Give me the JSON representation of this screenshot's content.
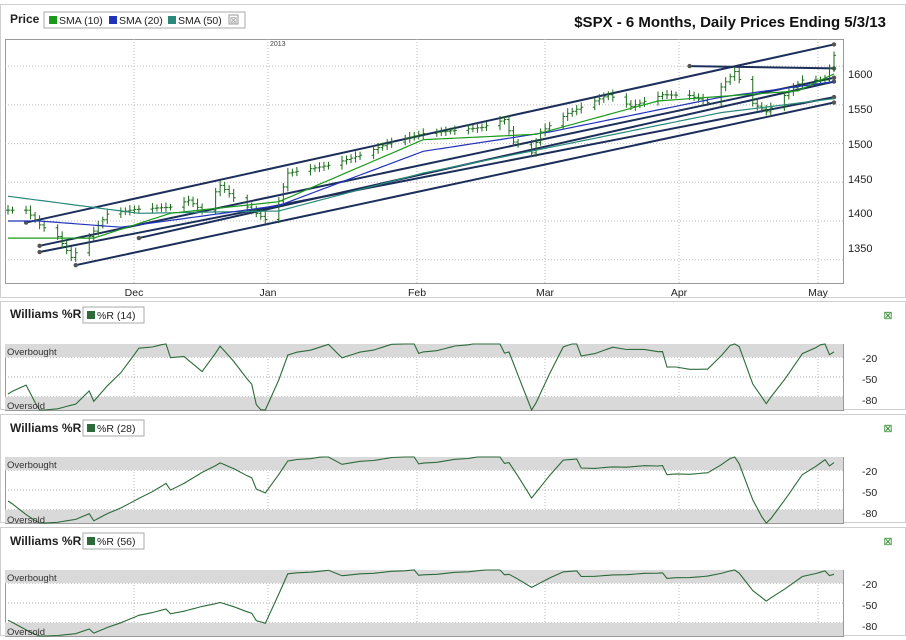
{
  "title": "$SPX - 6 Months, Daily Prices Ending 5/3/13",
  "price_panel": {
    "label": "Price",
    "legend": [
      {
        "name": "SMA (10)",
        "color": "#1a9a1a"
      },
      {
        "name": "SMA (20)",
        "color": "#2233bb"
      },
      {
        "name": "SMA (50)",
        "color": "#2a8a7a"
      }
    ],
    "year_marker": "2013",
    "y_ticks": [
      "1600",
      "1550",
      "1500",
      "1450",
      "1400",
      "1350"
    ],
    "x_ticks": [
      "Dec",
      "Jan",
      "Feb",
      "Mar",
      "Apr",
      "May"
    ]
  },
  "williams_panels": [
    {
      "title": "Williams %R",
      "legend": "%R (14)",
      "overbought": "Overbought",
      "oversold": "Oversold",
      "ticks": [
        "-20",
        "-50",
        "-80"
      ]
    },
    {
      "title": "Williams %R",
      "legend": "%R (28)",
      "overbought": "Overbought",
      "oversold": "Oversold",
      "ticks": [
        "-20",
        "-50",
        "-80"
      ]
    },
    {
      "title": "Williams %R",
      "legend": "%R (56)",
      "overbought": "Overbought",
      "oversold": "Oversold",
      "ticks": [
        "-20",
        "-50",
        "-80"
      ]
    }
  ],
  "colors": {
    "price_bar": "#1a6b1a",
    "sma10": "#1a9a1a",
    "sma20": "#2233bb",
    "sma50": "#2a8a7a",
    "trendline": "#1c2f5a",
    "wr_line": "#2d6b3a",
    "band": "#d9d9d9"
  },
  "chart_data": [
    {
      "type": "line",
      "title": "$SPX - 6 Months, Daily Prices Ending 5/3/13",
      "x_months": [
        "Dec",
        "Jan",
        "Feb",
        "Mar",
        "Apr",
        "May"
      ],
      "ylim": [
        1320,
        1635
      ],
      "price_close_keypoints": [
        [
          "2012-11-05",
          1414
        ],
        [
          "2012-11-08",
          1395
        ],
        [
          "2012-11-12",
          1380
        ],
        [
          "2012-11-15",
          1353
        ],
        [
          "2012-11-16",
          1359
        ],
        [
          "2012-11-20",
          1387
        ],
        [
          "2012-11-23",
          1409
        ],
        [
          "2012-11-29",
          1415
        ],
        [
          "2012-12-07",
          1418
        ],
        [
          "2012-12-11",
          1427
        ],
        [
          "2012-12-14",
          1413
        ],
        [
          "2012-12-18",
          1446
        ],
        [
          "2012-12-21",
          1430
        ],
        [
          "2012-12-28",
          1402
        ],
        [
          "2012-12-31",
          1426
        ],
        [
          "2013-01-02",
          1462
        ],
        [
          "2013-01-11",
          1472
        ],
        [
          "2013-01-18",
          1485
        ],
        [
          "2013-01-25",
          1502
        ],
        [
          "2013-02-01",
          1513
        ],
        [
          "2013-02-08",
          1517
        ],
        [
          "2013-02-14",
          1521
        ],
        [
          "2013-02-19",
          1531
        ],
        [
          "2013-02-21",
          1502
        ],
        [
          "2013-02-25",
          1488
        ],
        [
          "2013-02-27",
          1515
        ],
        [
          "2013-03-05",
          1539
        ],
        [
          "2013-03-14",
          1563
        ],
        [
          "2013-03-19",
          1548
        ],
        [
          "2013-03-26",
          1563
        ],
        [
          "2013-04-01",
          1562
        ],
        [
          "2013-04-05",
          1553
        ],
        [
          "2013-04-11",
          1593
        ],
        [
          "2013-04-15",
          1552
        ],
        [
          "2013-04-18",
          1541
        ],
        [
          "2013-04-22",
          1562
        ],
        [
          "2013-04-26",
          1582
        ],
        [
          "2013-05-01",
          1582
        ],
        [
          "2013-05-02",
          1597
        ],
        [
          "2013-05-03",
          1614
        ]
      ],
      "sma10_keypoints": [
        [
          "2012-11-20",
          1378
        ],
        [
          "2012-12-07",
          1410
        ],
        [
          "2012-12-31",
          1425
        ],
        [
          "2013-02-01",
          1505
        ],
        [
          "2013-02-26",
          1512
        ],
        [
          "2013-03-25",
          1555
        ],
        [
          "2013-04-25",
          1568
        ],
        [
          "2013-05-03",
          1590
        ]
      ],
      "sma20_keypoints": [
        [
          "2012-11-08",
          1400
        ],
        [
          "2012-11-26",
          1392
        ],
        [
          "2012-12-31",
          1420
        ],
        [
          "2013-02-01",
          1490
        ],
        [
          "2013-03-01",
          1515
        ],
        [
          "2013-04-08",
          1560
        ],
        [
          "2013-05-03",
          1580
        ]
      ],
      "sma50_keypoints": [
        [
          "2012-11-01",
          1432
        ],
        [
          "2012-11-30",
          1410
        ],
        [
          "2012-12-31",
          1413
        ],
        [
          "2013-02-01",
          1462
        ],
        [
          "2013-03-01",
          1495
        ],
        [
          "2013-04-08",
          1540
        ],
        [
          "2013-05-03",
          1558
        ]
      ]
    },
    {
      "type": "line",
      "title": "Williams %R",
      "series": [
        {
          "name": "%R (14)",
          "keypoints": [
            [
              "2012-11-01",
              -65
            ],
            [
              "2012-11-05",
              -55
            ],
            [
              "2012-11-08",
              -100
            ],
            [
              "2012-11-16",
              -100
            ],
            [
              "2012-11-26",
              -40
            ],
            [
              "2012-11-30",
              -10
            ],
            [
              "2012-12-10",
              -10
            ],
            [
              "2012-12-14",
              -40
            ],
            [
              "2012-12-18",
              -5
            ],
            [
              "2012-12-28",
              -100
            ],
            [
              "2013-01-02",
              -15
            ],
            [
              "2013-02-01",
              -3
            ],
            [
              "2013-02-20",
              -3
            ],
            [
              "2013-02-25",
              -100
            ],
            [
              "2013-03-04",
              -10
            ],
            [
              "2013-03-15",
              -3
            ],
            [
              "2013-04-05",
              -40
            ],
            [
              "2013-04-11",
              -3
            ],
            [
              "2013-04-18",
              -85
            ],
            [
              "2013-04-26",
              -20
            ],
            [
              "2013-05-03",
              -3
            ]
          ]
        }
      ],
      "ylim": [
        -100,
        0
      ]
    },
    {
      "type": "line",
      "title": "Williams %R",
      "series": [
        {
          "name": "%R (28)",
          "keypoints": [
            [
              "2012-11-01",
              -60
            ],
            [
              "2012-11-08",
              -100
            ],
            [
              "2012-11-16",
              -100
            ],
            [
              "2012-11-30",
              -65
            ],
            [
              "2012-12-18",
              -10
            ],
            [
              "2012-12-28",
              -50
            ],
            [
              "2013-01-02",
              -5
            ],
            [
              "2013-02-20",
              -3
            ],
            [
              "2013-02-25",
              -60
            ],
            [
              "2013-03-04",
              -8
            ],
            [
              "2013-04-05",
              -25
            ],
            [
              "2013-04-11",
              -3
            ],
            [
              "2013-04-18",
              -100
            ],
            [
              "2013-04-26",
              -30
            ],
            [
              "2013-05-03",
              -3
            ]
          ]
        }
      ],
      "ylim": [
        -100,
        0
      ]
    },
    {
      "type": "line",
      "title": "Williams %R",
      "series": [
        {
          "name": "%R (56)",
          "keypoints": [
            [
              "2012-11-01",
              -72
            ],
            [
              "2012-11-08",
              -100
            ],
            [
              "2012-11-16",
              -100
            ],
            [
              "2012-11-30",
              -70
            ],
            [
              "2012-12-18",
              -50
            ],
            [
              "2012-12-28",
              -78
            ],
            [
              "2013-01-02",
              -5
            ],
            [
              "2013-02-20",
              -3
            ],
            [
              "2013-02-25",
              -25
            ],
            [
              "2013-03-04",
              -5
            ],
            [
              "2013-04-05",
              -10
            ],
            [
              "2013-04-11",
              -3
            ],
            [
              "2013-04-18",
              -45
            ],
            [
              "2013-04-26",
              -12
            ],
            [
              "2013-05-03",
              -3
            ]
          ]
        }
      ],
      "ylim": [
        -100,
        0
      ]
    }
  ]
}
